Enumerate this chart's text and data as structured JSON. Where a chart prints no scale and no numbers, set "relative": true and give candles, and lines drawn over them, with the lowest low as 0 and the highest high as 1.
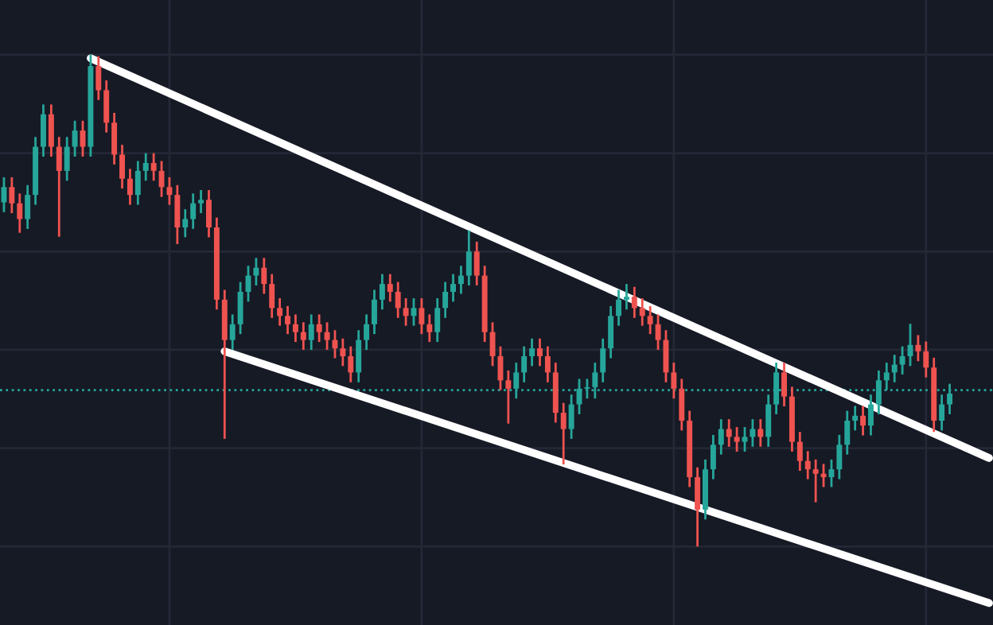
{
  "chart_data": {
    "type": "candlestick",
    "relative": true,
    "grid": true,
    "categories": [
      null,
      null,
      null,
      null,
      null,
      null,
      null,
      null,
      null,
      null,
      null,
      null,
      null,
      null,
      null,
      null,
      null,
      null,
      null,
      null,
      null,
      null,
      null,
      null,
      null,
      null,
      null,
      null,
      null,
      null,
      null,
      null,
      null,
      null,
      null,
      null,
      null,
      null,
      null,
      null,
      null,
      null,
      null,
      null,
      null,
      null,
      null,
      null,
      null,
      null,
      null,
      null,
      null,
      null,
      null,
      null,
      null,
      null,
      null,
      null,
      null,
      null,
      null,
      null,
      null,
      null,
      null,
      null,
      null,
      null,
      null,
      null,
      null,
      null,
      null,
      null,
      null,
      null,
      null,
      null,
      null,
      null,
      null,
      null,
      null,
      null,
      null,
      null,
      null,
      null,
      null,
      null,
      null,
      null,
      null,
      null,
      null,
      null,
      null,
      null,
      null,
      null,
      null,
      null,
      null,
      null,
      null,
      null,
      null,
      null,
      null,
      null,
      null,
      null,
      null,
      null,
      null,
      null,
      null,
      null,
      null,
      null,
      null,
      null,
      null,
      null
    ],
    "ohlc": [
      [
        0.7,
        0.751,
        0.68,
        0.731
      ],
      [
        0.731,
        0.751,
        0.678,
        0.698
      ],
      [
        0.698,
        0.718,
        0.638,
        0.666
      ],
      [
        0.666,
        0.735,
        0.646,
        0.715
      ],
      [
        0.715,
        0.833,
        0.695,
        0.813
      ],
      [
        0.813,
        0.899,
        0.793,
        0.879
      ],
      [
        0.879,
        0.899,
        0.793,
        0.813
      ],
      [
        0.813,
        0.833,
        0.63,
        0.764
      ],
      [
        0.764,
        0.833,
        0.744,
        0.813
      ],
      [
        0.813,
        0.866,
        0.793,
        0.846
      ],
      [
        0.846,
        0.866,
        0.793,
        0.813
      ],
      [
        0.813,
        1.0,
        0.793,
        0.977
      ],
      [
        0.977,
        0.997,
        0.908,
        0.928
      ],
      [
        0.928,
        0.948,
        0.842,
        0.862
      ],
      [
        0.862,
        0.882,
        0.777,
        0.797
      ],
      [
        0.797,
        0.817,
        0.728,
        0.748
      ],
      [
        0.748,
        0.768,
        0.695,
        0.715
      ],
      [
        0.715,
        0.784,
        0.695,
        0.764
      ],
      [
        0.764,
        0.8,
        0.744,
        0.78
      ],
      [
        0.78,
        0.8,
        0.744,
        0.764
      ],
      [
        0.764,
        0.784,
        0.711,
        0.731
      ],
      [
        0.731,
        0.751,
        0.695,
        0.715
      ],
      [
        0.715,
        0.735,
        0.615,
        0.649
      ],
      [
        0.649,
        0.686,
        0.629,
        0.666
      ],
      [
        0.666,
        0.718,
        0.646,
        0.698
      ],
      [
        0.698,
        0.725,
        0.678,
        0.705
      ],
      [
        0.705,
        0.725,
        0.629,
        0.649
      ],
      [
        0.649,
        0.669,
        0.482,
        0.502
      ],
      [
        0.502,
        0.522,
        0.219,
        0.42
      ],
      [
        0.42,
        0.472,
        0.4,
        0.452
      ],
      [
        0.452,
        0.538,
        0.432,
        0.518
      ],
      [
        0.518,
        0.571,
        0.498,
        0.551
      ],
      [
        0.551,
        0.587,
        0.531,
        0.567
      ],
      [
        0.567,
        0.587,
        0.514,
        0.534
      ],
      [
        0.534,
        0.554,
        0.465,
        0.485
      ],
      [
        0.485,
        0.505,
        0.449,
        0.469
      ],
      [
        0.469,
        0.489,
        0.432,
        0.452
      ],
      [
        0.452,
        0.472,
        0.416,
        0.436
      ],
      [
        0.436,
        0.456,
        0.4,
        0.42
      ],
      [
        0.42,
        0.472,
        0.4,
        0.452
      ],
      [
        0.452,
        0.472,
        0.416,
        0.436
      ],
      [
        0.436,
        0.456,
        0.4,
        0.42
      ],
      [
        0.42,
        0.44,
        0.383,
        0.403
      ],
      [
        0.403,
        0.423,
        0.367,
        0.387
      ],
      [
        0.387,
        0.407,
        0.334,
        0.354
      ],
      [
        0.354,
        0.44,
        0.334,
        0.42
      ],
      [
        0.42,
        0.472,
        0.4,
        0.452
      ],
      [
        0.452,
        0.522,
        0.432,
        0.502
      ],
      [
        0.502,
        0.554,
        0.482,
        0.534
      ],
      [
        0.534,
        0.554,
        0.498,
        0.518
      ],
      [
        0.518,
        0.538,
        0.465,
        0.485
      ],
      [
        0.485,
        0.505,
        0.449,
        0.469
      ],
      [
        0.469,
        0.505,
        0.449,
        0.485
      ],
      [
        0.485,
        0.505,
        0.432,
        0.452
      ],
      [
        0.452,
        0.472,
        0.416,
        0.436
      ],
      [
        0.436,
        0.505,
        0.416,
        0.485
      ],
      [
        0.485,
        0.538,
        0.465,
        0.518
      ],
      [
        0.518,
        0.554,
        0.498,
        0.534
      ],
      [
        0.534,
        0.571,
        0.514,
        0.551
      ],
      [
        0.551,
        0.643,
        0.531,
        0.6
      ],
      [
        0.6,
        0.62,
        0.531,
        0.551
      ],
      [
        0.551,
        0.571,
        0.416,
        0.436
      ],
      [
        0.436,
        0.456,
        0.367,
        0.387
      ],
      [
        0.387,
        0.407,
        0.318,
        0.338
      ],
      [
        0.338,
        0.358,
        0.25,
        0.321
      ],
      [
        0.321,
        0.374,
        0.301,
        0.354
      ],
      [
        0.354,
        0.407,
        0.334,
        0.387
      ],
      [
        0.387,
        0.423,
        0.367,
        0.403
      ],
      [
        0.403,
        0.423,
        0.367,
        0.387
      ],
      [
        0.387,
        0.407,
        0.334,
        0.354
      ],
      [
        0.354,
        0.374,
        0.252,
        0.272
      ],
      [
        0.272,
        0.292,
        0.167,
        0.239
      ],
      [
        0.239,
        0.309,
        0.219,
        0.289
      ],
      [
        0.289,
        0.341,
        0.269,
        0.321
      ],
      [
        0.321,
        0.341,
        0.301,
        0.324
      ],
      [
        0.324,
        0.374,
        0.301,
        0.354
      ],
      [
        0.354,
        0.423,
        0.334,
        0.403
      ],
      [
        0.403,
        0.489,
        0.383,
        0.469
      ],
      [
        0.469,
        0.522,
        0.449,
        0.502
      ],
      [
        0.502,
        0.534,
        0.482,
        0.508
      ],
      [
        0.508,
        0.528,
        0.465,
        0.485
      ],
      [
        0.485,
        0.505,
        0.449,
        0.469
      ],
      [
        0.469,
        0.489,
        0.432,
        0.452
      ],
      [
        0.452,
        0.472,
        0.4,
        0.42
      ],
      [
        0.42,
        0.44,
        0.334,
        0.354
      ],
      [
        0.354,
        0.374,
        0.301,
        0.321
      ],
      [
        0.321,
        0.341,
        0.236,
        0.256
      ],
      [
        0.256,
        0.276,
        0.121,
        0.141
      ],
      [
        0.141,
        0.161,
        0.0,
        0.075
      ],
      [
        0.075,
        0.177,
        0.055,
        0.157
      ],
      [
        0.157,
        0.227,
        0.137,
        0.207
      ],
      [
        0.207,
        0.259,
        0.187,
        0.239
      ],
      [
        0.239,
        0.259,
        0.203,
        0.223
      ],
      [
        0.223,
        0.243,
        0.193,
        0.213
      ],
      [
        0.213,
        0.243,
        0.193,
        0.223
      ],
      [
        0.223,
        0.259,
        0.203,
        0.239
      ],
      [
        0.239,
        0.259,
        0.203,
        0.223
      ],
      [
        0.223,
        0.309,
        0.203,
        0.289
      ],
      [
        0.289,
        0.374,
        0.269,
        0.354
      ],
      [
        0.354,
        0.374,
        0.285,
        0.305
      ],
      [
        0.305,
        0.325,
        0.193,
        0.213
      ],
      [
        0.213,
        0.233,
        0.154,
        0.174
      ],
      [
        0.174,
        0.194,
        0.137,
        0.157
      ],
      [
        0.157,
        0.177,
        0.09,
        0.148
      ],
      [
        0.148,
        0.168,
        0.121,
        0.141
      ],
      [
        0.141,
        0.177,
        0.121,
        0.157
      ],
      [
        0.157,
        0.227,
        0.137,
        0.207
      ],
      [
        0.207,
        0.276,
        0.187,
        0.256
      ],
      [
        0.256,
        0.286,
        0.236,
        0.266
      ],
      [
        0.266,
        0.286,
        0.226,
        0.246
      ],
      [
        0.246,
        0.309,
        0.226,
        0.289
      ],
      [
        0.289,
        0.358,
        0.269,
        0.338
      ],
      [
        0.338,
        0.374,
        0.318,
        0.354
      ],
      [
        0.354,
        0.39,
        0.334,
        0.37
      ],
      [
        0.37,
        0.407,
        0.35,
        0.387
      ],
      [
        0.387,
        0.453,
        0.367,
        0.41
      ],
      [
        0.41,
        0.43,
        0.377,
        0.397
      ],
      [
        0.397,
        0.417,
        0.344,
        0.364
      ],
      [
        0.364,
        0.384,
        0.233,
        0.256
      ],
      [
        0.256,
        0.309,
        0.236,
        0.289
      ],
      [
        0.289,
        0.331,
        0.269,
        0.311
      ],
      null,
      null,
      null,
      null,
      null
    ],
    "colors": [
      "#26a69a",
      "#ef5350",
      "#ef5350",
      "#26a69a",
      "#26a69a",
      "#26a69a",
      "#ef5350",
      "#ef5350",
      "#26a69a",
      "#26a69a",
      "#ef5350",
      "#26a69a",
      "#ef5350",
      "#ef5350",
      "#ef5350",
      "#ef5350",
      "#ef5350",
      "#26a69a",
      "#26a69a",
      "#ef5350",
      "#ef5350",
      "#ef5350",
      "#ef5350",
      "#26a69a",
      "#26a69a",
      "#26a69a",
      "#ef5350",
      "#ef5350",
      "#ef5350",
      "#26a69a",
      "#26a69a",
      "#26a69a",
      "#26a69a",
      "#ef5350",
      "#ef5350",
      "#ef5350",
      "#ef5350",
      "#ef5350",
      "#ef5350",
      "#26a69a",
      "#ef5350",
      "#ef5350",
      "#ef5350",
      "#ef5350",
      "#ef5350",
      "#26a69a",
      "#26a69a",
      "#26a69a",
      "#26a69a",
      "#ef5350",
      "#ef5350",
      "#ef5350",
      "#26a69a",
      "#ef5350",
      "#ef5350",
      "#26a69a",
      "#26a69a",
      "#26a69a",
      "#26a69a",
      "#26a69a",
      "#ef5350",
      "#ef5350",
      "#ef5350",
      "#ef5350",
      "#ef5350",
      "#26a69a",
      "#26a69a",
      "#26a69a",
      "#ef5350",
      "#ef5350",
      "#ef5350",
      "#ef5350",
      "#26a69a",
      "#26a69a",
      "#26a69a",
      "#26a69a",
      "#26a69a",
      "#26a69a",
      "#26a69a",
      "#26a69a",
      "#ef5350",
      "#ef5350",
      "#ef5350",
      "#ef5350",
      "#ef5350",
      "#ef5350",
      "#ef5350",
      "#ef5350",
      "#ef5350",
      "#26a69a",
      "#26a69a",
      "#26a69a",
      "#ef5350",
      "#ef5350",
      "#26a69a",
      "#26a69a",
      "#ef5350",
      "#26a69a",
      "#26a69a",
      "#ef5350",
      "#ef5350",
      "#ef5350",
      "#ef5350",
      "#ef5350",
      "#ef5350",
      "#26a69a",
      "#26a69a",
      "#26a69a",
      "#26a69a",
      "#ef5350",
      "#26a69a",
      "#26a69a",
      "#26a69a",
      "#26a69a",
      "#26a69a",
      "#26a69a",
      "#ef5350",
      "#ef5350",
      "#ef5350",
      "#26a69a",
      "#26a69a",
      null,
      null,
      null,
      null,
      null
    ],
    "series": [
      {
        "type": "line",
        "color": "#ffffff",
        "values": [
          null,
          null,
          null,
          null,
          null,
          null,
          null,
          null,
          null,
          null,
          null,
          0.993,
          null,
          null,
          null,
          null,
          null,
          null,
          null,
          null,
          null,
          null,
          null,
          null,
          null,
          null,
          null,
          null,
          null,
          null,
          null,
          null,
          null,
          null,
          null,
          null,
          null,
          null,
          null,
          null,
          null,
          null,
          null,
          null,
          null,
          null,
          null,
          null,
          null,
          null,
          null,
          null,
          null,
          null,
          null,
          null,
          null,
          null,
          null,
          null,
          null,
          null,
          null,
          null,
          null,
          null,
          null,
          null,
          null,
          null,
          null,
          null,
          null,
          null,
          null,
          null,
          null,
          null,
          null,
          null,
          null,
          null,
          null,
          null,
          null,
          null,
          null,
          null,
          null,
          null,
          null,
          null,
          null,
          null,
          null,
          null,
          null,
          null,
          null,
          null,
          null,
          null,
          null,
          null,
          null,
          null,
          null,
          null,
          null,
          null,
          null,
          null,
          null,
          null,
          null,
          null,
          null,
          null,
          null,
          null,
          null,
          null,
          null,
          null,
          null,
          0.18
        ]
      },
      {
        "type": "line",
        "color": "#ffffff",
        "values": [
          null,
          null,
          null,
          null,
          null,
          null,
          null,
          null,
          null,
          null,
          null,
          null,
          null,
          null,
          null,
          null,
          null,
          null,
          null,
          null,
          null,
          null,
          null,
          null,
          null,
          null,
          null,
          null,
          0.397,
          null,
          null,
          null,
          null,
          null,
          null,
          null,
          null,
          null,
          null,
          null,
          null,
          null,
          null,
          null,
          null,
          null,
          null,
          null,
          null,
          null,
          null,
          null,
          null,
          null,
          null,
          null,
          null,
          null,
          null,
          null,
          null,
          null,
          null,
          null,
          null,
          null,
          null,
          null,
          null,
          null,
          null,
          null,
          null,
          null,
          null,
          null,
          null,
          null,
          null,
          null,
          null,
          null,
          null,
          null,
          null,
          null,
          null,
          null,
          null,
          null,
          null,
          null,
          null,
          null,
          null,
          null,
          null,
          null,
          null,
          null,
          null,
          null,
          null,
          null,
          null,
          null,
          null,
          null,
          null,
          null,
          null,
          null,
          null,
          null,
          null,
          null,
          null,
          null,
          null,
          null,
          null,
          null,
          null,
          null,
          null,
          -0.115
        ]
      }
    ],
    "ref_lines": [
      {
        "axis": "y",
        "value": 0.318,
        "color": "#26a69a",
        "line_style": "dotted"
      }
    ]
  }
}
